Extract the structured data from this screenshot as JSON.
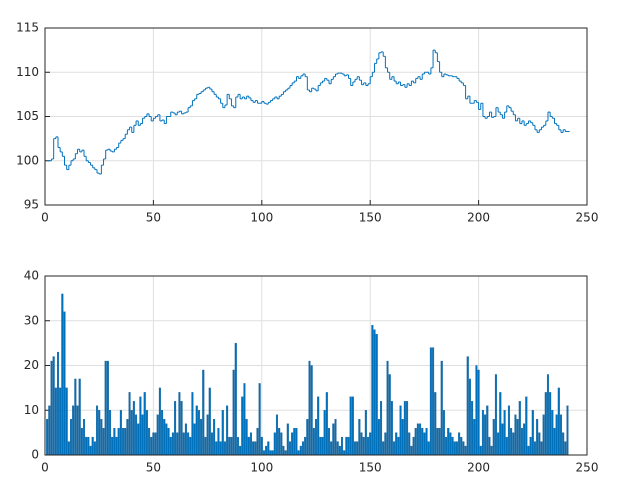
{
  "chart_data": [
    {
      "type": "stairs",
      "color": "#0072bd",
      "grid": true,
      "xlim": [
        0,
        250
      ],
      "xticks": [
        0,
        50,
        100,
        150,
        200,
        250
      ],
      "ylim": [
        95,
        115
      ],
      "yticks": [
        95,
        100,
        105,
        110,
        115
      ],
      "values": [
        100,
        100,
        100.2,
        102.5,
        102.7,
        101.5,
        101,
        100.5,
        99.5,
        99,
        99.5,
        100,
        100.2,
        100.8,
        101.3,
        101,
        101.2,
        100.5,
        100,
        99.8,
        99.5,
        99.2,
        99,
        98.6,
        98.5,
        99.5,
        100.2,
        101.2,
        101.3,
        101.1,
        101,
        101.3,
        101.5,
        102,
        102.3,
        102.5,
        103,
        103.5,
        103.8,
        103.2,
        104,
        104.5,
        104,
        104.2,
        104.8,
        105,
        105.3,
        105,
        104.5,
        104.8,
        105,
        105.2,
        104.5,
        104.6,
        104.2,
        105,
        105,
        105.5,
        105.4,
        105.2,
        105.5,
        105.6,
        105.3,
        105.4,
        105.5,
        106,
        106.2,
        106.8,
        107,
        107.5,
        107.6,
        107.8,
        108,
        108.2,
        108.3,
        108.1,
        107.8,
        107.5,
        107.2,
        107,
        106.5,
        106,
        106.3,
        107.5,
        107,
        106.2,
        106,
        107.2,
        107.5,
        107,
        107.2,
        107,
        107.3,
        107.1,
        106.8,
        106.6,
        106.8,
        106.5,
        106.5,
        106.7,
        106.5,
        106.4,
        106.6,
        106.8,
        107,
        107.2,
        107,
        107.3,
        107.5,
        107.8,
        108,
        108.2,
        108.5,
        108.8,
        109,
        109.5,
        109.3,
        109.6,
        109.8,
        109.5,
        108,
        107.8,
        108.2,
        108.1,
        107.9,
        108.5,
        108.8,
        109,
        109.3,
        109.1,
        108.7,
        109.2,
        109.5,
        109.8,
        109.9,
        109.9,
        109.8,
        109.6,
        109.7,
        109.3,
        108.5,
        108.9,
        109.2,
        109.5,
        109.1,
        108.6,
        108.8,
        108.5,
        108.7,
        109.5,
        110,
        111,
        111.5,
        112.2,
        112.3,
        111.8,
        110.5,
        110,
        109.2,
        109.5,
        109,
        108.7,
        108.9,
        108.5,
        108.6,
        108.3,
        108.7,
        108.5,
        109,
        108.8,
        109.3,
        109.5,
        109.2,
        109.8,
        110,
        110,
        109.8,
        110.5,
        112.5,
        112.2,
        111.2,
        110,
        109.5,
        109.8,
        109.7,
        109.6,
        109.6,
        109.5,
        109.5,
        109.3,
        109,
        108.8,
        108.5,
        107,
        107.3,
        106.5,
        106.5,
        106.8,
        106.6,
        105.8,
        106.5,
        105,
        104.8,
        105,
        105.5,
        104.9,
        105,
        106,
        105.5,
        105.2,
        104.8,
        105.5,
        106.2,
        106,
        105.6,
        105.2,
        104.5,
        104.8,
        104.2,
        104.5,
        104,
        104.2,
        104.5,
        104.3,
        104,
        103.5,
        103.2,
        103.5,
        103.8,
        104,
        104.5,
        105.5,
        105,
        104.8,
        104.2,
        104,
        103.5,
        103.2,
        103.5,
        103.3,
        103.3
      ]
    },
    {
      "type": "bar",
      "color": "#0072bd",
      "grid": true,
      "xlim": [
        0,
        250
      ],
      "xticks": [
        0,
        50,
        100,
        150,
        200,
        250
      ],
      "ylim": [
        0,
        40
      ],
      "yticks": [
        0,
        10,
        20,
        30,
        40
      ],
      "values": [
        8,
        11,
        21,
        22,
        15,
        23,
        15,
        36,
        32,
        15,
        3,
        8,
        11,
        17,
        11,
        17,
        6,
        8,
        4,
        4,
        2,
        4,
        3,
        11,
        10,
        8,
        6,
        21,
        21,
        10,
        4,
        6,
        4,
        6,
        10,
        6,
        6,
        8,
        14,
        10,
        12,
        9,
        7,
        13,
        9,
        14,
        10,
        6,
        4,
        5,
        5,
        9,
        15,
        10,
        8,
        7,
        6,
        4,
        5,
        12,
        5,
        14,
        12,
        5,
        7,
        5,
        4,
        14,
        7,
        11,
        10,
        8,
        19,
        4,
        9,
        15,
        5,
        8,
        3,
        6,
        3,
        10,
        3,
        11,
        4,
        4,
        19,
        25,
        4,
        2,
        13,
        16,
        8,
        4,
        5,
        3,
        3,
        6,
        16,
        4,
        1,
        2,
        3,
        1,
        1,
        5,
        9,
        6,
        5,
        2,
        1,
        7,
        3,
        5,
        6,
        6,
        1,
        2,
        3,
        4,
        8,
        21,
        20,
        6,
        8,
        13,
        4,
        4,
        10,
        14,
        6,
        3,
        7,
        8,
        3,
        2,
        4,
        1,
        4,
        4,
        13,
        13,
        3,
        3,
        8,
        5,
        4,
        10,
        4,
        5,
        29,
        28,
        27,
        8,
        12,
        3,
        5,
        21,
        18,
        12,
        3,
        5,
        4,
        11,
        8,
        12,
        12,
        5,
        2,
        4,
        6,
        7,
        7,
        6,
        5,
        6,
        3,
        24,
        24,
        14,
        6,
        6,
        21,
        10,
        4,
        6,
        5,
        4,
        3,
        3,
        5,
        4,
        3,
        2,
        22,
        17,
        12,
        8,
        20,
        19,
        2,
        10,
        9,
        11,
        4,
        2,
        8,
        18,
        5,
        14,
        7,
        10,
        4,
        11,
        6,
        5,
        9,
        8,
        12,
        6,
        7,
        13,
        2,
        4,
        10,
        3,
        8,
        5,
        3,
        9,
        14,
        18,
        14,
        10,
        6,
        9,
        15,
        9,
        5,
        3,
        11
      ]
    }
  ]
}
